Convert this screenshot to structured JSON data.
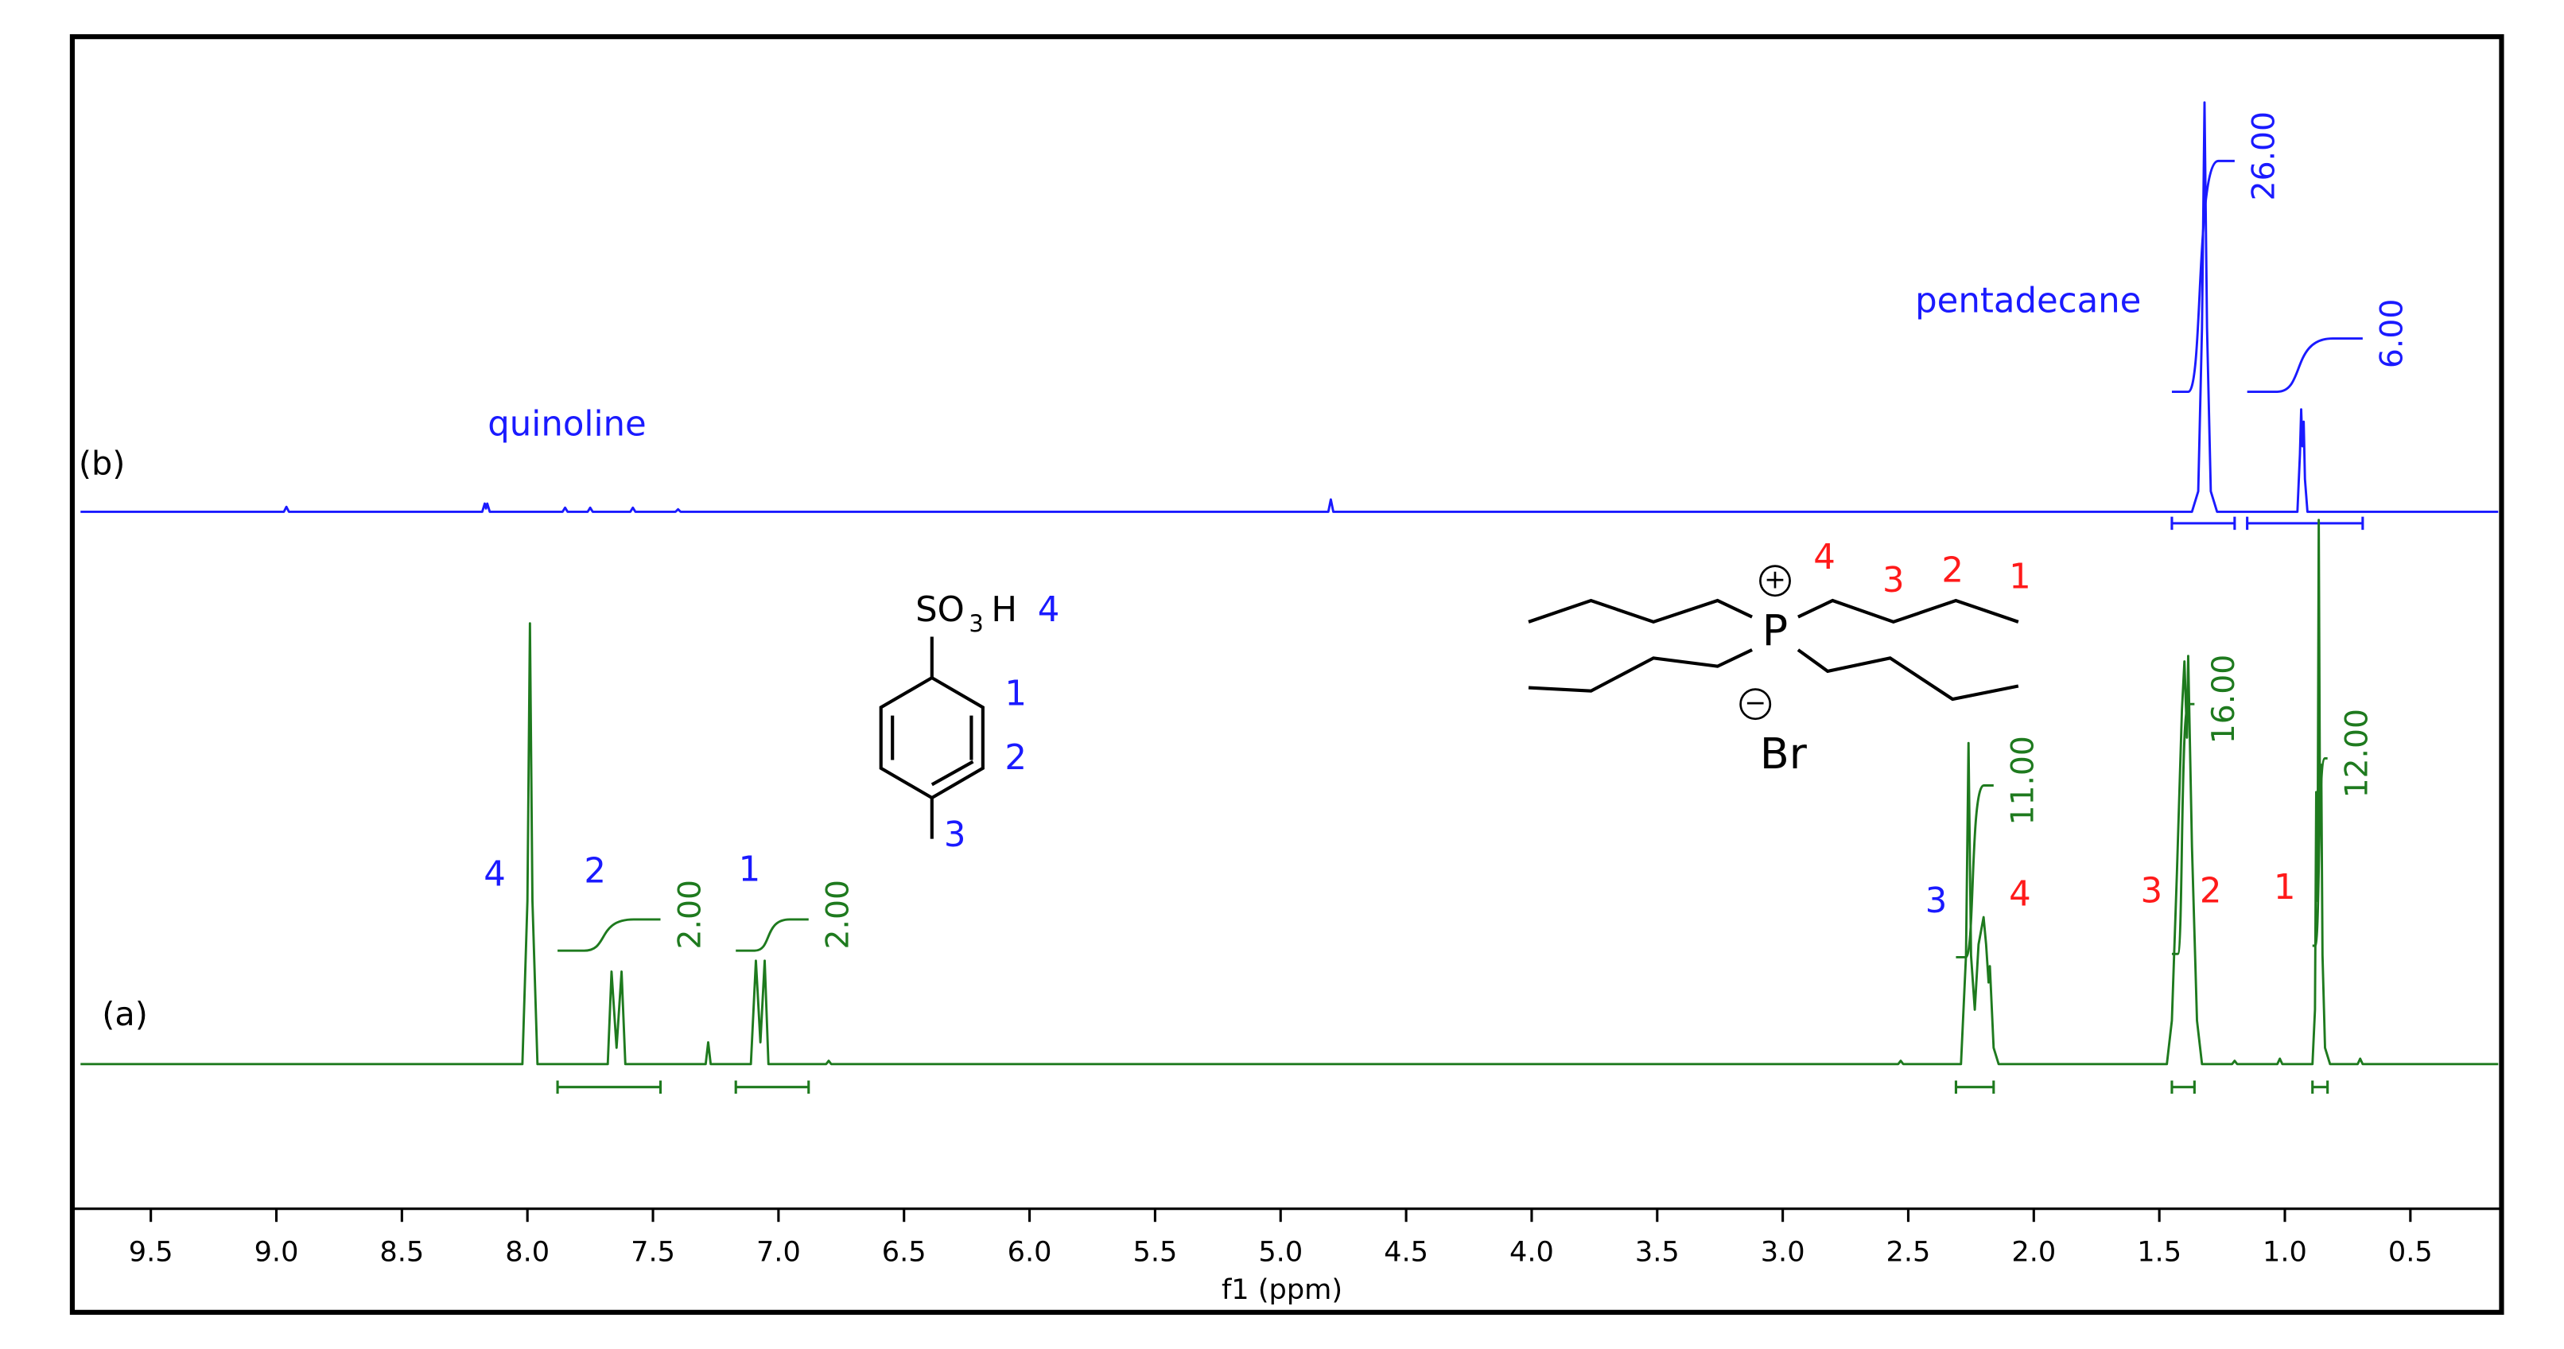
{
  "chart_data": {
    "type": "line",
    "x_label": "f1 (ppm)",
    "xlim": [
      9.78,
      0.15
    ],
    "xticks": [
      9.5,
      {
        "value": 9,
        "label": "9.0"
      },
      8.5,
      {
        "value": 8,
        "label": "8.0"
      },
      7.5,
      {
        "value": 7,
        "label": "7.0"
      },
      6.5,
      {
        "value": 6,
        "label": "6.0"
      },
      5.5,
      {
        "value": 5,
        "label": "5.0"
      },
      4.5,
      {
        "value": 4,
        "label": "4.0"
      },
      3.5,
      {
        "value": 3,
        "label": "3.0"
      },
      2.5,
      {
        "value": 2,
        "label": "2.0"
      },
      1.5,
      {
        "value": 1,
        "label": "1.0"
      },
      0.5
    ],
    "series": [
      {
        "name": "(b)",
        "color": "#1a1aff",
        "x": [
          9.78,
          8.97,
          8.96,
          8.95,
          8.18,
          8.17,
          8.165,
          8.16,
          8.15,
          7.86,
          7.85,
          7.84,
          7.76,
          7.75,
          7.74,
          7.59,
          7.58,
          7.57,
          7.41,
          7.4,
          7.39,
          4.81,
          4.8,
          4.79,
          1.37,
          1.345,
          1.33,
          1.32,
          1.31,
          1.295,
          1.27,
          0.95,
          0.94,
          0.935,
          0.93,
          0.925,
          0.92,
          0.91,
          0.15
        ],
        "values": [
          0,
          0,
          1.2,
          0,
          0,
          2,
          0.8,
          2,
          0,
          0,
          1,
          0,
          0,
          1,
          0,
          0,
          1,
          0,
          0,
          0.6,
          0,
          0,
          3,
          0,
          0,
          5,
          45,
          100,
          45,
          5,
          0,
          0,
          14,
          25,
          16,
          22,
          8,
          0,
          0
        ],
        "integrals": {
          "ranges": [
            [
              1.45,
              1.2
            ],
            [
              1.15,
              0.69
            ]
          ],
          "values": [
            26,
            6
          ],
          "value_labels": [
            "26.00",
            "6.00"
          ]
        }
      },
      {
        "name": "(a)",
        "color": "#1e7a1e",
        "x": [
          9.78,
          8.02,
          8.0,
          7.99,
          7.98,
          7.96,
          7.68,
          7.665,
          7.645,
          7.625,
          7.61,
          7.29,
          7.28,
          7.27,
          7.11,
          7.09,
          7.072,
          7.055,
          7.04,
          6.81,
          6.8,
          6.79,
          2.54,
          2.53,
          2.52,
          2.29,
          2.27,
          2.26,
          2.25,
          2.235,
          2.22,
          2.2,
          2.19,
          2.18,
          2.175,
          2.16,
          2.14,
          1.47,
          1.45,
          1.43,
          1.41,
          1.4,
          1.39,
          1.385,
          1.37,
          1.35,
          1.33,
          1.21,
          1.2,
          1.19,
          1.03,
          1.02,
          1.01,
          0.89,
          0.88,
          0.875,
          0.87,
          0.865,
          0.86,
          0.855,
          0.85,
          0.84,
          0.82,
          0.71,
          0.7,
          0.69,
          0.15
        ],
        "values": [
          0,
          0,
          30,
          81,
          30,
          0,
          0,
          17,
          3,
          17,
          0,
          0,
          4,
          0,
          0,
          19,
          4,
          19,
          0,
          0,
          0.6,
          0,
          0,
          0.6,
          0,
          0,
          20,
          59,
          20,
          10,
          22,
          27,
          22,
          15,
          18,
          3,
          0,
          0,
          8,
          35,
          65,
          74,
          60,
          75,
          40,
          8,
          0,
          0,
          0.6,
          0,
          0,
          1,
          0,
          0,
          10,
          50,
          30,
          100,
          45,
          55,
          20,
          3,
          0,
          0,
          1,
          0,
          0
        ],
        "integrals": {
          "ranges": [
            [
              7.88,
              7.47
            ],
            [
              7.17,
              6.88
            ],
            [
              2.31,
              2.16
            ],
            [
              1.45,
              1.36
            ],
            [
              0.89,
              0.83
            ]
          ],
          "values": [
            2,
            2,
            11,
            16,
            12
          ],
          "value_labels": [
            "2.00",
            "2.00",
            "11.00",
            "16.00",
            "12.00"
          ]
        }
      }
    ],
    "annotations": [
      {
        "text": "quinoline",
        "color": "#1a1aff"
      },
      {
        "text": "pentadecane",
        "color": "#1a1aff"
      },
      {
        "text": "4",
        "color": "#1a1aff"
      },
      {
        "text": "2",
        "color": "#1a1aff"
      },
      {
        "text": "1",
        "color": "#1a1aff"
      },
      {
        "text": "3",
        "color": "#1a1aff"
      },
      {
        "text": "4",
        "color": "#ff1a1a"
      },
      {
        "text": "3",
        "color": "#ff1a1a"
      },
      {
        "text": "2",
        "color": "#ff1a1a"
      },
      {
        "text": "1",
        "color": "#ff1a1a"
      },
      {
        "text": "4",
        "color": "#1a1aff"
      },
      {
        "text": "1",
        "color": "#1a1aff"
      },
      {
        "text": "2",
        "color": "#1a1aff"
      },
      {
        "text": "3",
        "color": "#1a1aff"
      },
      {
        "text": "4",
        "color": "#ff1a1a"
      },
      {
        "text": "3",
        "color": "#ff1a1a"
      },
      {
        "text": "2",
        "color": "#ff1a1a"
      },
      {
        "text": "1",
        "color": "#ff1a1a"
      },
      {
        "text": "P",
        "color": "#000000"
      },
      {
        "text": "Br",
        "color": "#000000"
      },
      {
        "text": "SO",
        "color": "#000000"
      },
      {
        "text": "3",
        "color": "#000000"
      },
      {
        "text": "H",
        "color": "#000000"
      },
      {
        "text": "+",
        "color": "#000000"
      },
      {
        "text": "−",
        "color": "#000000"
      }
    ]
  }
}
